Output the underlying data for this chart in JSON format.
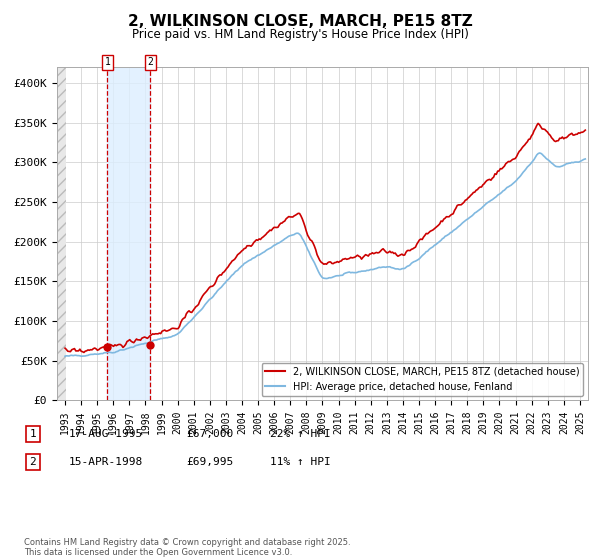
{
  "title": "2, WILKINSON CLOSE, MARCH, PE15 8TZ",
  "subtitle": "Price paid vs. HM Land Registry's House Price Index (HPI)",
  "ylim": [
    0,
    420000
  ],
  "yticks": [
    0,
    50000,
    100000,
    150000,
    200000,
    250000,
    300000,
    350000,
    400000
  ],
  "ytick_labels": [
    "£0",
    "£50K",
    "£100K",
    "£150K",
    "£200K",
    "£250K",
    "£300K",
    "£350K",
    "£400K"
  ],
  "hpi_color": "#7fb8e0",
  "price_color": "#cc0000",
  "purchase1_date": 1995.63,
  "purchase1_price": 67000,
  "purchase2_date": 1998.29,
  "purchase2_price": 69995,
  "legend_price_label": "2, WILKINSON CLOSE, MARCH, PE15 8TZ (detached house)",
  "legend_hpi_label": "HPI: Average price, detached house, Fenland",
  "highlight_color": "#ddeeff",
  "grid_color": "#cccccc",
  "dashed_color": "#cc0000",
  "copyright": "Contains HM Land Registry data © Crown copyright and database right 2025.\nThis data is licensed under the Open Government Licence v3.0."
}
